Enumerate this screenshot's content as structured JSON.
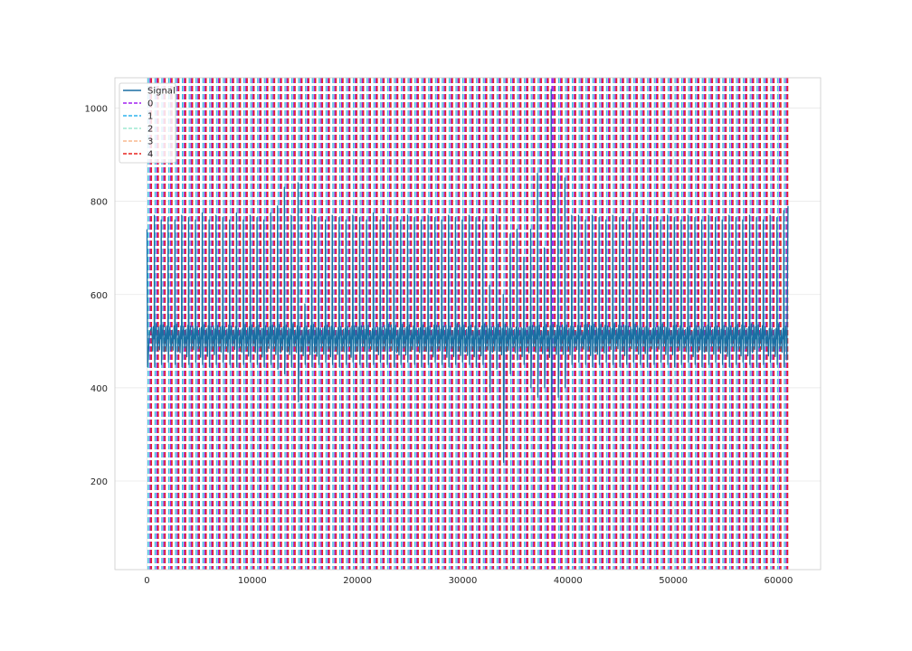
{
  "chart_data": {
    "type": "line",
    "title": "",
    "xlabel": "",
    "ylabel": "",
    "xlim": [
      -3050,
      64000
    ],
    "ylim": [
      10,
      1065
    ],
    "x_ticks": [
      0,
      10000,
      20000,
      30000,
      40000,
      50000,
      60000
    ],
    "y_ticks": [
      200,
      400,
      600,
      800,
      1000
    ],
    "grid": true,
    "legend_position": "top-left",
    "series": [
      {
        "name": "Signal",
        "style": "solid",
        "color": "#1a6fa3",
        "values_description": "noisy ECG-like signal, baseline ~500 with periodic spikes up to ~800 and dips to ~220, x from 0 to 60900"
      },
      {
        "name": "0",
        "style": "dashed",
        "color": "#a020f0",
        "positions": [
          38500
        ]
      },
      {
        "name": "1",
        "style": "dashed",
        "color": "#2fb3ee"
      },
      {
        "name": "2",
        "style": "dashed",
        "color": "#9ee8d0"
      },
      {
        "name": "3",
        "style": "dashed",
        "color": "#f8b98e"
      },
      {
        "name": "4",
        "style": "dashed",
        "color": "#e8231e"
      }
    ],
    "signal": {
      "x_start": 0,
      "x_end": 60900,
      "baseline": 500,
      "beats_x": [
        700,
        1350,
        2000,
        2650,
        3300,
        3950,
        4600,
        5250,
        5900,
        6550,
        7200,
        7850,
        8500,
        9150,
        9800,
        10450,
        11100,
        11750,
        12400,
        13050,
        13700,
        14350,
        15000,
        15650,
        16300,
        16950,
        17600,
        18250,
        18900,
        19550,
        20200,
        20850,
        21500,
        22150,
        22800,
        23450,
        24100,
        24750,
        25400,
        26050,
        26700,
        27350,
        28000,
        28650,
        29300,
        29950,
        30600,
        31250,
        31900,
        32550,
        33200,
        33850,
        34500,
        35150,
        35800,
        36450,
        37100,
        37750,
        38400,
        39050,
        39700,
        40350,
        41000,
        41650,
        42300,
        42950,
        43600,
        44250,
        44900,
        45550,
        46200,
        46850,
        47500,
        48150,
        48800,
        49450,
        50100,
        50750,
        51400,
        52050,
        52700,
        53350,
        54000,
        54650,
        55300,
        55950,
        56600,
        57250,
        57900,
        58550,
        59200,
        59850,
        60500
      ],
      "beats_peak": [
        770,
        760,
        765,
        760,
        770,
        765,
        760,
        775,
        760,
        770,
        765,
        760,
        775,
        760,
        770,
        765,
        760,
        775,
        790,
        830,
        770,
        840,
        580,
        770,
        765,
        760,
        770,
        765,
        760,
        770,
        765,
        760,
        775,
        760,
        770,
        765,
        760,
        770,
        765,
        760,
        770,
        765,
        760,
        770,
        765,
        760,
        770,
        765,
        760,
        620,
        770,
        600,
        730,
        740,
        680,
        740,
        860,
        700,
        1040,
        860,
        850,
        770,
        770,
        760,
        770,
        765,
        760,
        770,
        765,
        760,
        775,
        760,
        770,
        765,
        760,
        770,
        765,
        760,
        770,
        765,
        760,
        770,
        765,
        760,
        770,
        765,
        760,
        770,
        765,
        760,
        770,
        765,
        780
      ],
      "beats_trough": [
        445,
        450,
        455,
        450,
        445,
        450,
        455,
        450,
        445,
        450,
        455,
        450,
        445,
        450,
        455,
        450,
        445,
        450,
        440,
        430,
        445,
        370,
        450,
        445,
        450,
        455,
        450,
        445,
        450,
        455,
        450,
        445,
        450,
        455,
        450,
        445,
        450,
        455,
        450,
        445,
        450,
        455,
        450,
        445,
        450,
        455,
        450,
        445,
        450,
        390,
        440,
        240,
        430,
        460,
        450,
        400,
        380,
        400,
        220,
        380,
        400,
        450,
        455,
        450,
        445,
        450,
        455,
        450,
        445,
        450,
        455,
        450,
        445,
        450,
        455,
        450,
        445,
        450,
        455,
        450,
        445,
        450,
        455,
        450,
        445,
        450,
        455,
        450,
        445,
        450,
        455,
        450,
        445
      ]
    },
    "markers_x": [
      300,
      950,
      1600,
      2250,
      2900,
      3550,
      4200,
      4850,
      5500,
      6150,
      6800,
      7450,
      8100,
      8750,
      9400,
      10050,
      10700,
      11350,
      12000,
      12650,
      13300,
      13950,
      14600,
      15250,
      15900,
      16550,
      17200,
      17850,
      18500,
      19150,
      19800,
      20450,
      21100,
      21750,
      22400,
      23050,
      23700,
      24350,
      25000,
      25650,
      26300,
      26950,
      27600,
      28250,
      28900,
      29550,
      30200,
      30850,
      31500,
      32150,
      32800,
      33450,
      34100,
      34750,
      35400,
      36050,
      36700,
      37350,
      38000,
      38650,
      39300,
      39950,
      40600,
      41250,
      41900,
      42550,
      43200,
      43850,
      44500,
      45150,
      45800,
      46450,
      47100,
      47750,
      48400,
      49050,
      49700,
      50350,
      51000,
      51650,
      52300,
      52950,
      53600,
      54250,
      54900,
      55550,
      56200,
      56850,
      57500,
      58150,
      58800,
      59450,
      60100,
      60750
    ]
  }
}
